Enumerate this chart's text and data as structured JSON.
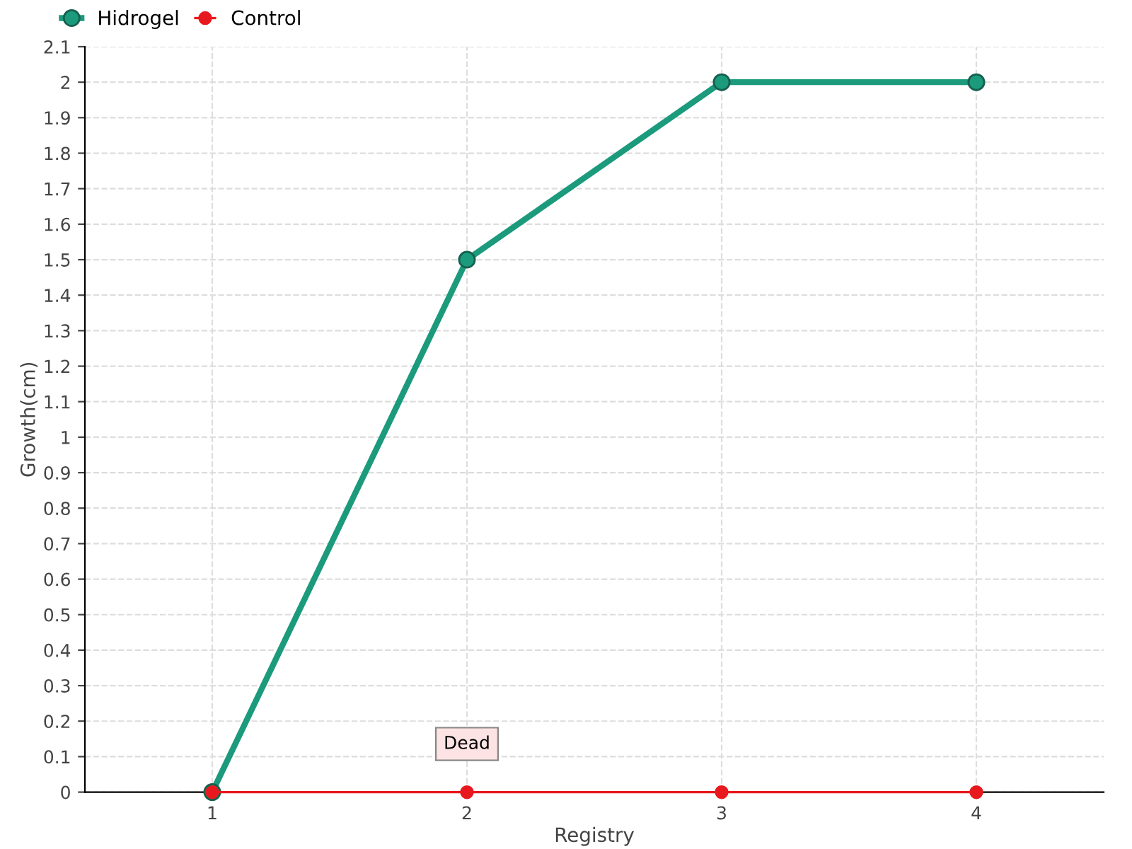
{
  "chart_data": {
    "type": "line",
    "xlabel": "Registry",
    "ylabel": "Growth(cm)",
    "categories": [
      "1",
      "2",
      "3",
      "4"
    ],
    "series": [
      {
        "name": "Hidrogel",
        "color": "#1b9a7c",
        "values": [
          0,
          1.5,
          2,
          2
        ]
      },
      {
        "name": "Control",
        "color": "#e8191e",
        "values": [
          0,
          0,
          0,
          0
        ]
      }
    ],
    "ylim": [
      0,
      2.1
    ],
    "yticks": [
      0,
      0.1,
      0.2,
      0.3,
      0.4,
      0.5,
      0.6,
      0.7,
      0.8,
      0.9,
      1,
      1.1,
      1.2,
      1.3,
      1.4,
      1.5,
      1.6,
      1.7,
      1.8,
      1.9,
      2,
      2.1
    ],
    "annotations": [
      {
        "text": "Dead",
        "x": "2",
        "y": 0
      }
    ],
    "grid": true,
    "legend": "top left",
    "marker": "circle",
    "line_style": "solid"
  }
}
